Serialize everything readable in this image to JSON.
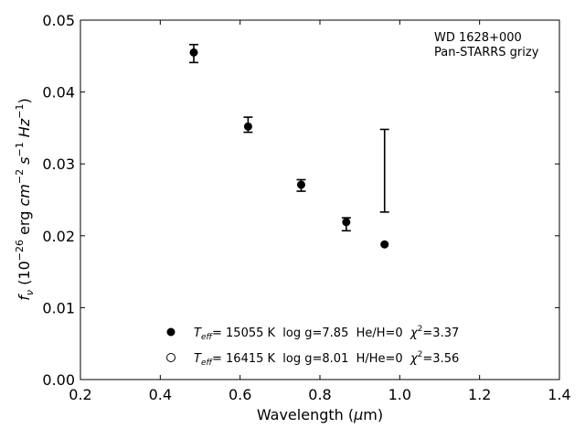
{
  "chart_data": {
    "type": "scatter",
    "annotation": [
      "WD 1628+000",
      "Pan-STARRS grizy"
    ],
    "xlabel": {
      "text": "Wavelength (",
      "mu": "μ",
      "unit": "m)"
    },
    "ylabel": {
      "f": "f",
      "sub": "ν",
      "pre": " (10",
      "exp": "−26",
      "mid": " erg ",
      "cm": "cm",
      "cmexp": "−2",
      "s": " s",
      "sexp": "−1",
      "hz": " Hz",
      "hzexp": "−1",
      "close": ")"
    },
    "xlim": [
      0.2,
      1.4
    ],
    "ylim": [
      0.0,
      0.05
    ],
    "xticks": [
      0.2,
      0.4,
      0.6,
      0.8,
      1.0,
      1.2,
      1.4
    ],
    "xtick_labels": [
      "0.2",
      "0.4",
      "0.6",
      "0.8",
      "1.0",
      "1.2",
      "1.4"
    ],
    "yticks": [
      0.0,
      0.01,
      0.02,
      0.03,
      0.04,
      0.05
    ],
    "ytick_labels": [
      "0.00",
      "0.01",
      "0.02",
      "0.03",
      "0.04",
      "0.05"
    ],
    "observed": [
      {
        "x": 0.484,
        "y": 0.0454,
        "ylo": 0.0441,
        "yhi": 0.0466
      },
      {
        "x": 0.62,
        "y": 0.0351,
        "ylo": 0.0344,
        "yhi": 0.0365
      },
      {
        "x": 0.753,
        "y": 0.0271,
        "ylo": 0.0262,
        "yhi": 0.0278
      },
      {
        "x": 0.866,
        "y": 0.0219,
        "ylo": 0.0207,
        "yhi": 0.0225
      },
      {
        "x": 0.962,
        "y": 0.0291,
        "ylo": 0.0233,
        "yhi": 0.0348
      }
    ],
    "model_points": [
      {
        "x": 0.484,
        "y": 0.0455
      },
      {
        "x": 0.62,
        "y": 0.0352
      },
      {
        "x": 0.753,
        "y": 0.0271
      },
      {
        "x": 0.866,
        "y": 0.0219
      },
      {
        "x": 0.962,
        "y": 0.0188
      }
    ],
    "legend": [
      {
        "marker": "filled",
        "T": "T",
        "eff": "eff",
        "text": "= 15055 K  log g=7.85  He/H=0  ",
        "chi": "χ",
        "chiexp": "2",
        "chival": "=3.37"
      },
      {
        "marker": "open",
        "T": "T",
        "eff": "eff",
        "text": "= 16415 K  log g=8.01  H/He=0  ",
        "chi": "χ",
        "chiexp": "2",
        "chival": "=3.56"
      }
    ],
    "legend_placement": "lower-center",
    "grid": false
  }
}
